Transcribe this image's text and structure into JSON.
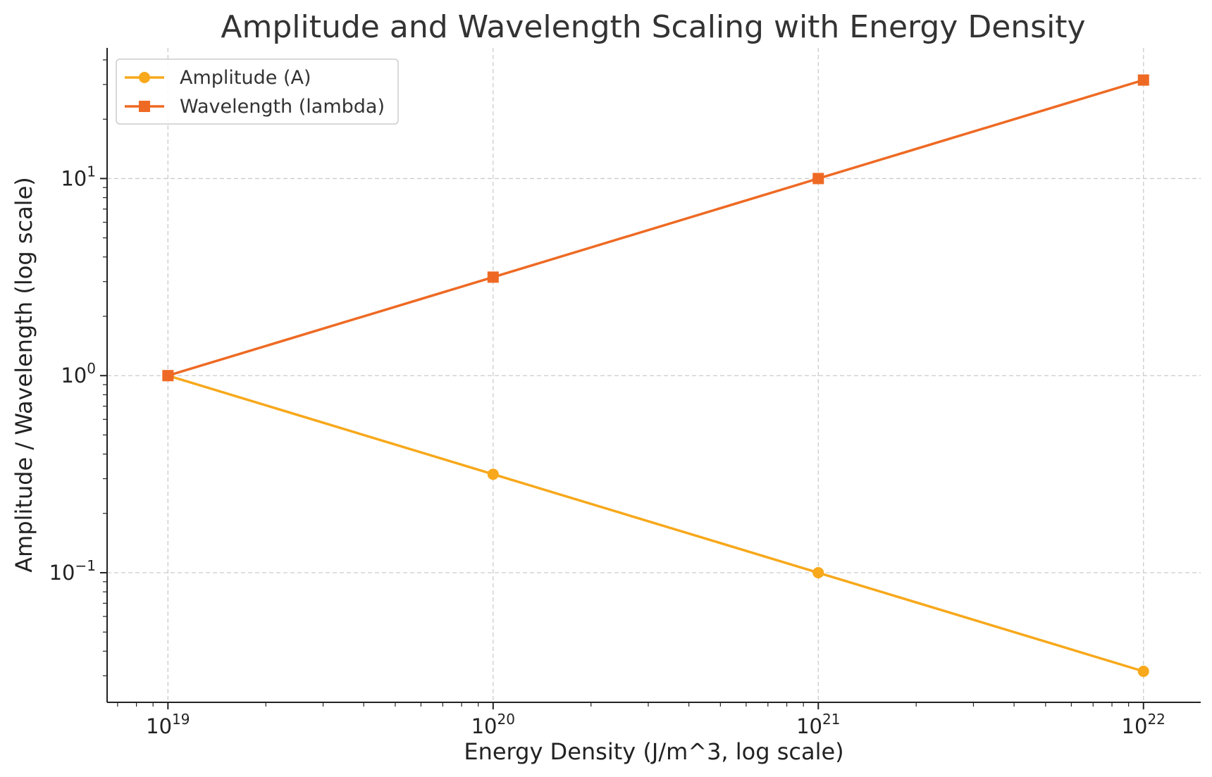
{
  "chart_data": {
    "type": "line",
    "title": "Amplitude and Wavelength Scaling with Energy Density",
    "xlabel": "Energy Density (J/m^3, log scale)",
    "ylabel": "Amplitude / Wavelength (log scale)",
    "x_scale": "log",
    "y_scale": "log",
    "xlim": [
      6.5e+18,
      1.5e+22
    ],
    "ylim": [
      0.022,
      46
    ],
    "x": [
      1e+19,
      1e+20,
      1e+21,
      1e+22
    ],
    "x_ticks": [
      {
        "value": 1e+19,
        "base": "10",
        "exp": "19"
      },
      {
        "value": 1e+20,
        "base": "10",
        "exp": "20"
      },
      {
        "value": 1e+21,
        "base": "10",
        "exp": "21"
      },
      {
        "value": 1e+22,
        "base": "10",
        "exp": "22"
      }
    ],
    "y_ticks": [
      {
        "value": 0.1,
        "base": "10",
        "exp": "−1"
      },
      {
        "value": 1,
        "base": "10",
        "exp": "0"
      },
      {
        "value": 10,
        "base": "10",
        "exp": "1"
      }
    ],
    "grid": true,
    "legend_position": "top-left",
    "series": [
      {
        "name": "Amplitude (A)",
        "marker": "circle",
        "color": "#F7A81B",
        "values": [
          1.0,
          0.316,
          0.1,
          0.0316
        ]
      },
      {
        "name": "Wavelength (lambda)",
        "marker": "square",
        "color": "#EE6A24",
        "values": [
          1.0,
          3.16,
          10.0,
          31.6
        ]
      }
    ]
  }
}
